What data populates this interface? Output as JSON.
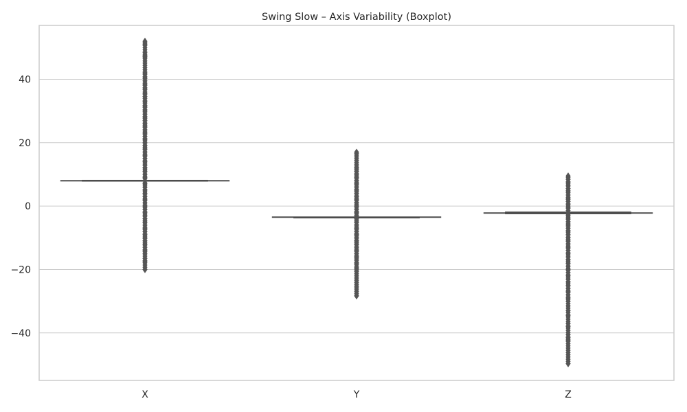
{
  "chart_data": {
    "type": "boxplot",
    "title": "Swing Slow – Axis Variability (Boxplot)",
    "xlabel": "",
    "ylabel": "",
    "categories": [
      "X",
      "Y",
      "Z"
    ],
    "ylim": [
      -55,
      57
    ],
    "yticks": [
      40,
      20,
      0,
      -20,
      -40
    ],
    "ytick_labels": [
      "40",
      "20",
      "0",
      "−20",
      "−40"
    ],
    "grid": true,
    "boxes": [
      {
        "category": "X",
        "q1": 7.9,
        "median": 8.0,
        "q3": 8.1,
        "whisker_low": 7.9,
        "whisker_high": 8.1,
        "outlier_range": [
          -20.0,
          52.0
        ],
        "outliers": [
          52,
          51.5,
          51,
          48.5,
          47.5,
          47,
          42,
          40.5,
          39.5,
          38.5,
          37,
          35.5,
          34.5,
          33,
          31.5,
          30,
          29,
          28,
          27,
          26,
          25,
          24,
          23,
          22,
          21,
          20,
          19,
          18,
          17,
          16,
          15,
          14,
          13,
          12,
          11,
          10,
          9,
          7,
          6,
          5,
          4,
          3,
          2,
          1,
          0,
          -1,
          -2,
          -3,
          -4,
          -5,
          -6,
          -7,
          -8,
          -9,
          -10,
          -11,
          -12,
          -13,
          -14,
          -15,
          -16.5,
          -17.5,
          -20
        ]
      },
      {
        "category": "Y",
        "q1": -3.5,
        "median": -3.5,
        "q3": -3.5,
        "whisker_low": -3.5,
        "whisker_high": -3.5,
        "outlier_range": [
          -28.3,
          17.0
        ],
        "outliers": [
          17,
          16.5,
          13,
          12,
          11,
          10,
          9,
          8,
          7,
          6,
          5,
          4,
          3,
          2,
          1,
          0,
          -1,
          -2,
          -3,
          -4,
          -5,
          -6,
          -7,
          -8,
          -9,
          -10,
          -11,
          -12,
          -13,
          -14,
          -15,
          -16,
          -17,
          -18,
          -19.5,
          -20.5,
          -25.5,
          -28.3
        ]
      },
      {
        "category": "Z",
        "q1": -2.4,
        "median": -2.2,
        "q3": -1.9,
        "whisker_low": -2.4,
        "whisker_high": -1.9,
        "outlier_range": [
          -49.7,
          9.5
        ],
        "outliers": [
          9.5,
          8.5,
          7.5,
          6.5,
          5.5,
          4.5,
          3.5,
          2.5,
          1.5,
          0.5,
          -0.5,
          -3,
          -4,
          -5,
          -6,
          -7,
          -8,
          -9,
          -10,
          -11,
          -12,
          -13,
          -14,
          -15,
          -16,
          -17,
          -18,
          -19,
          -20,
          -21,
          -22,
          -23,
          -24,
          -25,
          -26,
          -27,
          -28,
          -29,
          -30,
          -31.5,
          -33,
          -34.5,
          -37,
          -38,
          -40.5,
          -41.5,
          -42.3,
          -49.7
        ]
      }
    ]
  }
}
